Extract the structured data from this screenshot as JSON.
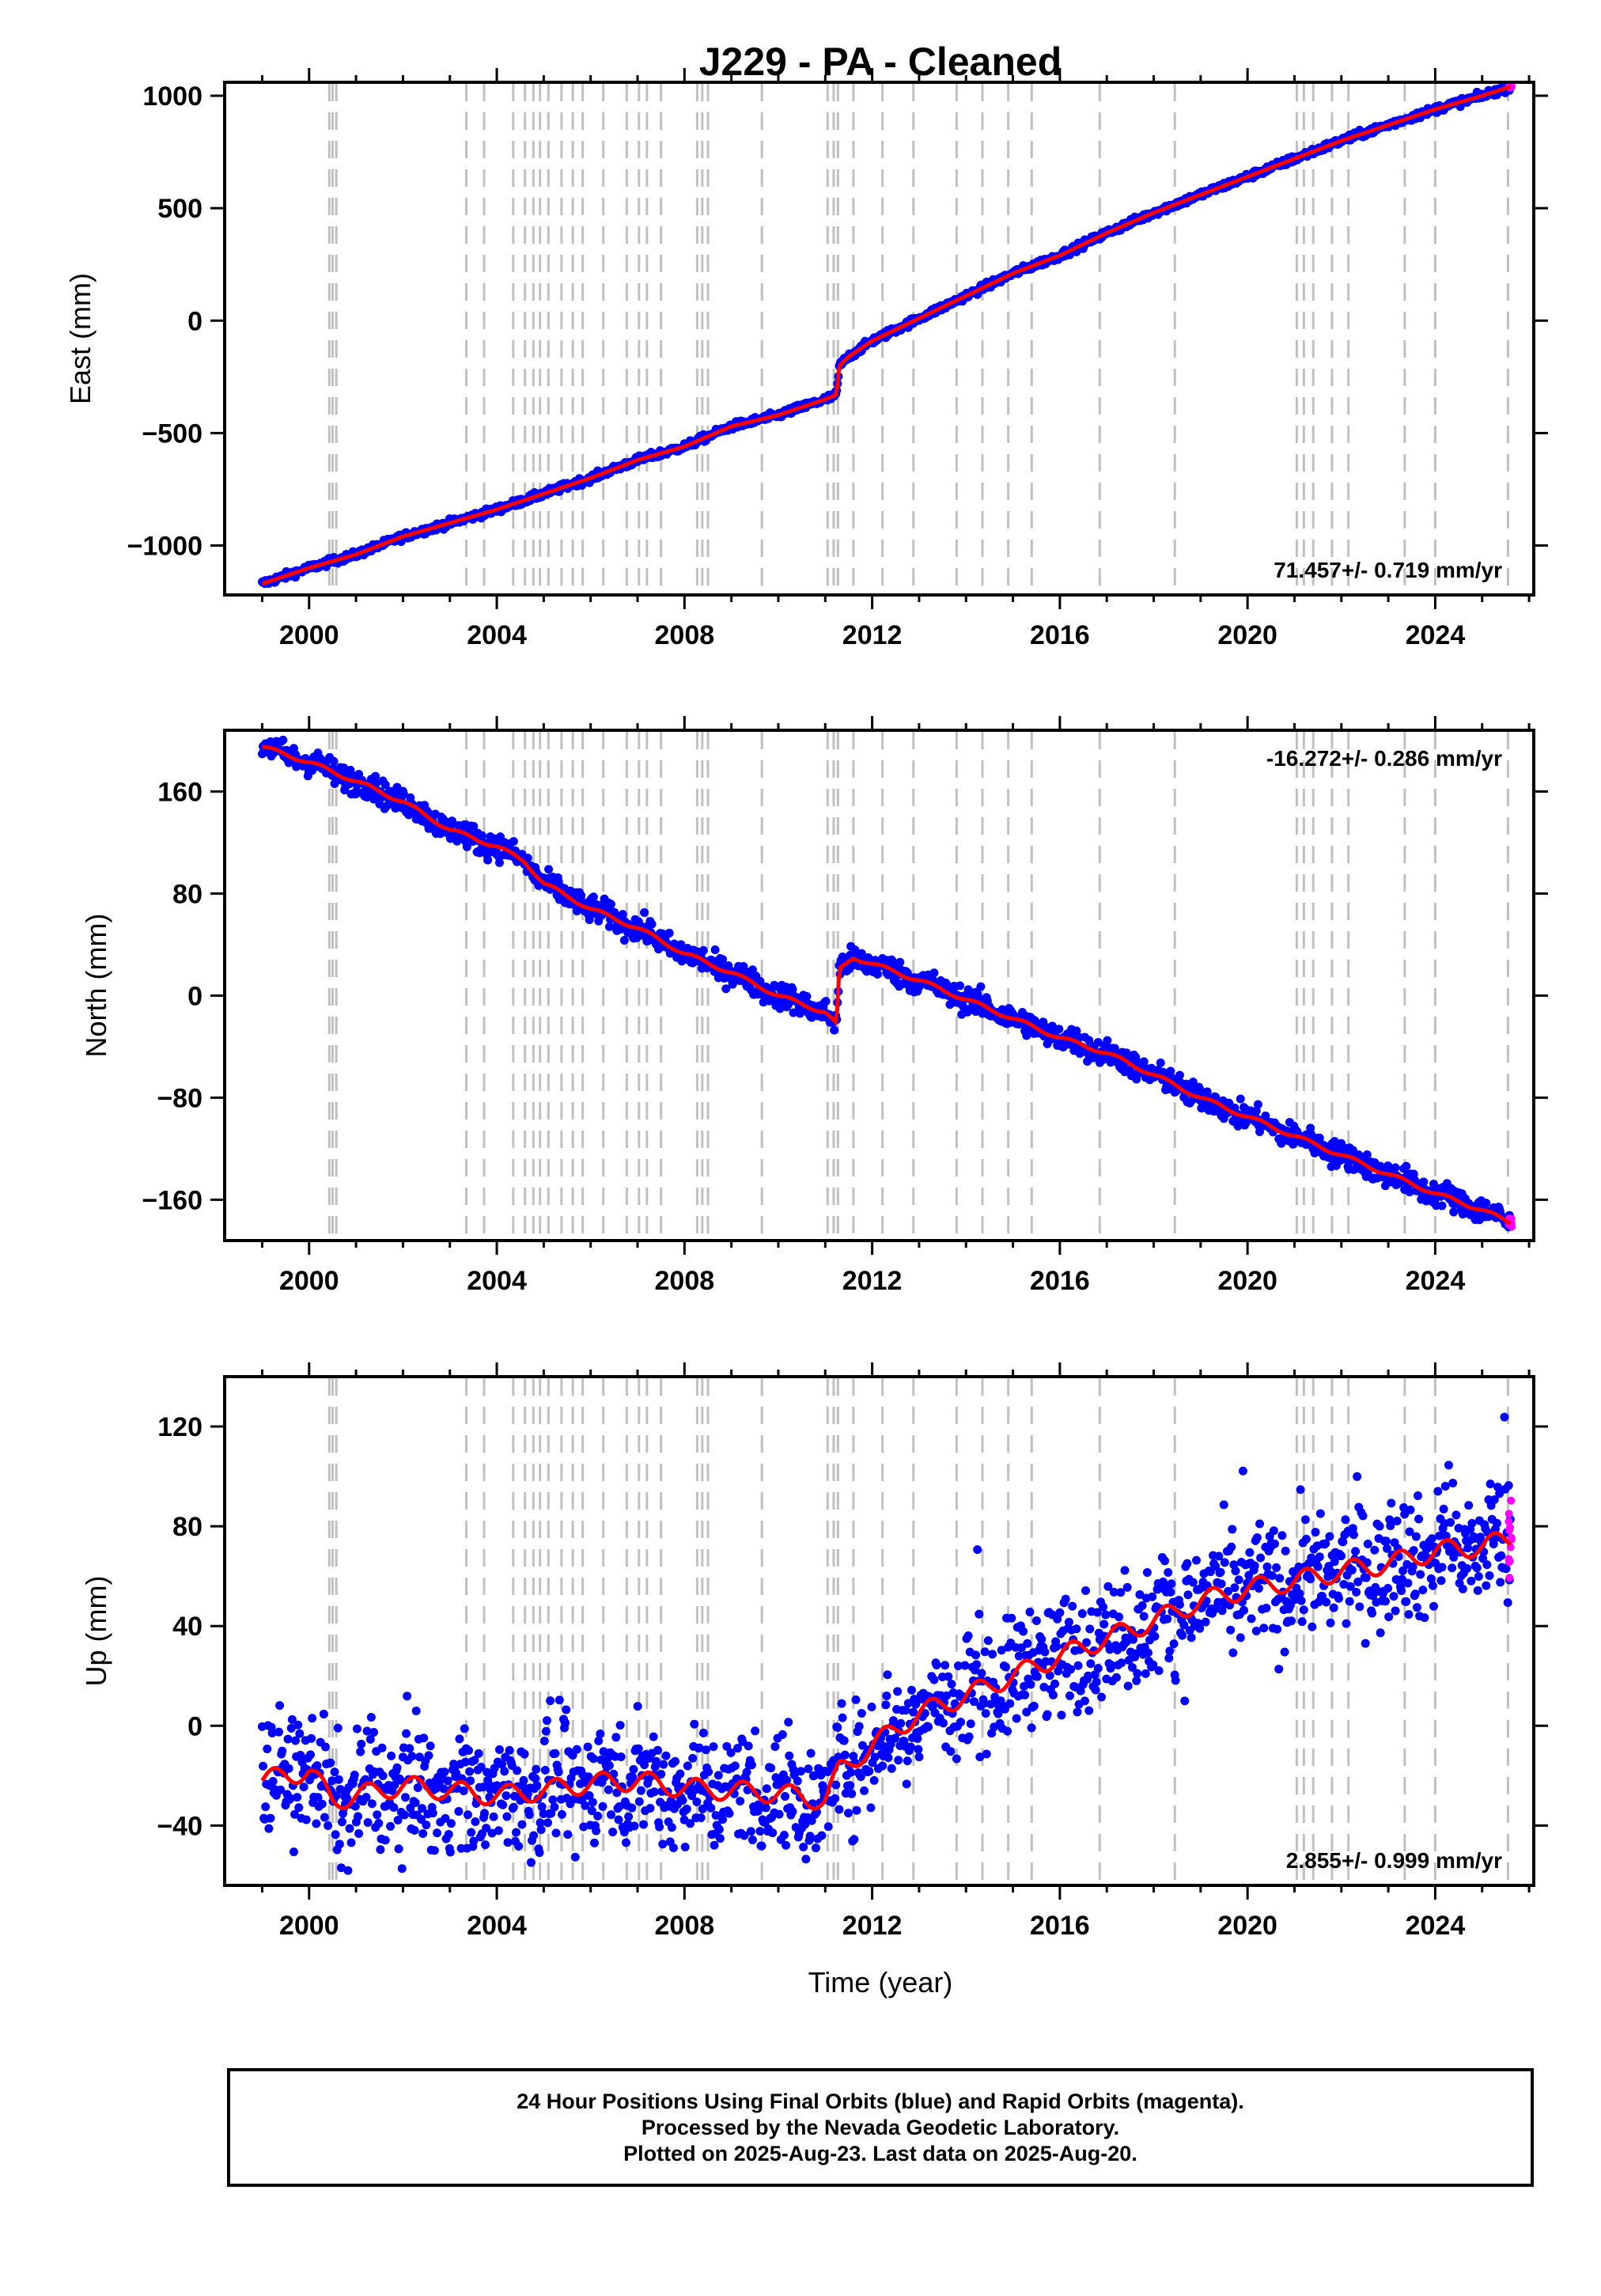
{
  "chart_data": {
    "title": "J229  - PA - Cleaned",
    "xlabel": "Time (year)",
    "xlim": [
      1998.2,
      2026.1
    ],
    "xticks": [
      2000,
      2004,
      2008,
      2012,
      2016,
      2020,
      2024
    ],
    "steps": [
      2000.43,
      2000.5,
      2000.58,
      2003.35,
      2003.73,
      2004.35,
      2004.6,
      2004.78,
      2004.92,
      2005.1,
      2005.38,
      2005.62,
      2005.83,
      2006.27,
      2006.77,
      2007.03,
      2007.2,
      2007.5,
      2008.27,
      2008.38,
      2008.5,
      2009.65,
      2011.05,
      2011.18,
      2011.27,
      2011.6,
      2012.22,
      2012.88,
      2013.8,
      2014.35,
      2014.9,
      2015.4,
      2016.85,
      2018.45,
      2021.05,
      2021.2,
      2021.4,
      2021.8,
      2022.15,
      2023.35,
      2024.0,
      2025.55
    ],
    "colors": {
      "final_orbits": "#0000ff",
      "rapid_orbits": "#ff00ff",
      "model": "#ff0000",
      "steps": "#c0c0c0"
    },
    "panels": [
      {
        "type": "scatter",
        "ylabel": "East (mm)",
        "ylim": [
          -1220,
          1060
        ],
        "yticks": [
          1000,
          500,
          0,
          -500,
          -1000
        ],
        "rate_text": "71.457+/- 0.719 mm/yr",
        "rate_position": "bottom-right",
        "series": [
          {
            "name": "Final Orbits",
            "kind": "points",
            "x": [
              1999.0,
              2000.0,
              2001.0,
              2002.0,
              2003.0,
              2004.0,
              2005.0,
              2006.0,
              2007.0,
              2008.0,
              2009.0,
              2010.0,
              2011.0,
              2011.24,
              2011.3,
              2011.5,
              2012.0,
              2013.0,
              2014.0,
              2015.0,
              2016.0,
              2017.0,
              2018.0,
              2019.0,
              2020.0,
              2021.0,
              2022.0,
              2023.0,
              2024.0,
              2025.0,
              2025.6
            ],
            "y": [
              -1170,
              -1100,
              -1040,
              -960,
              -900,
              -840,
              -770,
              -700,
              -620,
              -560,
              -470,
              -420,
              -350,
              -330,
              -200,
              -160,
              -90,
              10,
              110,
              210,
              290,
              390,
              480,
              560,
              640,
              720,
              800,
              870,
              940,
              1000,
              1040
            ],
            "scatter": 8
          },
          {
            "name": "Model",
            "kind": "line",
            "x": [
              1999.0,
              2000.0,
              2001.0,
              2002.0,
              2003.0,
              2004.0,
              2005.0,
              2006.0,
              2007.0,
              2008.0,
              2009.0,
              2010.0,
              2011.0,
              2011.24,
              2011.3,
              2011.5,
              2012.0,
              2013.0,
              2014.0,
              2015.0,
              2016.0,
              2017.0,
              2018.0,
              2019.0,
              2020.0,
              2021.0,
              2022.0,
              2023.0,
              2024.0,
              2025.0,
              2025.6
            ],
            "y": [
              -1170,
              -1100,
              -1040,
              -960,
              -900,
              -840,
              -770,
              -700,
              -620,
              -560,
              -470,
              -420,
              -350,
              -330,
              -200,
              -160,
              -90,
              10,
              110,
              210,
              290,
              390,
              480,
              560,
              640,
              720,
              800,
              870,
              940,
              1000,
              1040
            ]
          },
          {
            "name": "Rapid Orbits",
            "kind": "points",
            "x": [
              2025.6
            ],
            "y": [
              1040
            ],
            "scatter": 0
          }
        ]
      },
      {
        "type": "scatter",
        "ylabel": "North (mm)",
        "ylim": [
          -192,
          208
        ],
        "yticks": [
          160,
          80,
          0,
          -80,
          -160
        ],
        "rate_text": "-16.272+/- 0.286 mm/yr",
        "rate_position": "top-right",
        "series": [
          {
            "name": "Final Orbits",
            "kind": "points",
            "x": [
              1999.0,
              2000.0,
              2001.0,
              2002.0,
              2003.0,
              2004.0,
              2004.6,
              2005.0,
              2006.0,
              2007.0,
              2008.0,
              2009.0,
              2010.0,
              2011.0,
              2011.24,
              2011.3,
              2011.6,
              2012.0,
              2013.0,
              2014.0,
              2015.0,
              2016.0,
              2017.0,
              2018.0,
              2019.0,
              2020.0,
              2021.0,
              2022.0,
              2023.0,
              2024.0,
              2025.0,
              2025.6
            ],
            "y": [
              195,
              183,
              168,
              152,
              130,
              117,
              105,
              88,
              68,
              53,
              33,
              18,
              0,
              -13,
              -23,
              20,
              30,
              25,
              12,
              -3,
              -18,
              -33,
              -45,
              -62,
              -80,
              -95,
              -110,
              -125,
              -140,
              -155,
              -168,
              -178
            ],
            "scatter": 5
          },
          {
            "name": "Model",
            "kind": "line",
            "x": [
              1999.0,
              2000.0,
              2001.0,
              2002.0,
              2003.0,
              2004.0,
              2004.6,
              2005.0,
              2006.0,
              2007.0,
              2008.0,
              2009.0,
              2010.0,
              2011.0,
              2011.24,
              2011.3,
              2011.6,
              2012.0,
              2013.0,
              2014.0,
              2015.0,
              2016.0,
              2017.0,
              2018.0,
              2019.0,
              2020.0,
              2021.0,
              2022.0,
              2023.0,
              2024.0,
              2025.0,
              2025.6
            ],
            "y": [
              195,
              183,
              168,
              152,
              130,
              117,
              105,
              88,
              68,
              53,
              33,
              18,
              0,
              -13,
              -23,
              20,
              30,
              25,
              12,
              -3,
              -18,
              -33,
              -45,
              -62,
              -80,
              -95,
              -110,
              -125,
              -140,
              -155,
              -168,
              -178
            ]
          },
          {
            "name": "Rapid Orbits",
            "kind": "points",
            "x": [
              2025.6
            ],
            "y": [
              -176
            ],
            "scatter": 3
          }
        ]
      },
      {
        "type": "scatter",
        "ylabel": "Up (mm)",
        "ylim": [
          -64,
          140
        ],
        "yticks": [
          120,
          80,
          40,
          0,
          -40
        ],
        "rate_text": "2.855+/- 0.999 mm/yr",
        "rate_position": "bottom-right",
        "series": [
          {
            "name": "Final Orbits",
            "kind": "points",
            "x": [
              1999.0,
              2000.0,
              2000.5,
              2001.0,
              2002.0,
              2003.0,
              2004.0,
              2005.0,
              2006.0,
              2007.0,
              2008.0,
              2009.0,
              2010.0,
              2011.0,
              2011.3,
              2012.0,
              2013.0,
              2014.0,
              2015.0,
              2016.0,
              2017.0,
              2018.0,
              2019.0,
              2020.0,
              2021.0,
              2022.0,
              2023.0,
              2024.0,
              2025.0,
              2025.6
            ],
            "y": [
              -22,
              -18,
              -30,
              -28,
              -24,
              -26,
              -28,
              -26,
              -23,
              -22,
              -25,
              -26,
              -27,
              -30,
              -18,
              -8,
              5,
              12,
              20,
              28,
              35,
              42,
              50,
              55,
              58,
              62,
              65,
              70,
              72,
              75
            ],
            "scatter": 12
          },
          {
            "name": "Model",
            "kind": "line",
            "x": [
              1999.0,
              2000.0,
              2000.5,
              2001.0,
              2002.0,
              2003.0,
              2004.0,
              2005.0,
              2006.0,
              2007.0,
              2008.0,
              2009.0,
              2010.0,
              2011.0,
              2011.3,
              2012.0,
              2013.0,
              2014.0,
              2015.0,
              2016.0,
              2017.0,
              2018.0,
              2019.0,
              2020.0,
              2021.0,
              2022.0,
              2023.0,
              2024.0,
              2025.0,
              2025.6
            ],
            "y": [
              -22,
              -18,
              -30,
              -28,
              -24,
              -26,
              -28,
              -26,
              -23,
              -22,
              -25,
              -26,
              -27,
              -30,
              -18,
              -8,
              5,
              12,
              20,
              28,
              35,
              42,
              50,
              55,
              58,
              62,
              65,
              70,
              72,
              75
            ]
          },
          {
            "name": "Rapid Orbits",
            "kind": "points",
            "x": [
              2025.6
            ],
            "y": [
              80
            ],
            "scatter": 12
          }
        ]
      }
    ]
  },
  "footer": {
    "line1": "24 Hour Positions Using Final Orbits (blue) and Rapid Orbits (magenta).",
    "line2": "Processed by the Nevada Geodetic Laboratory.",
    "line3": "Plotted on 2025-Aug-23. Last data on 2025-Aug-20."
  }
}
